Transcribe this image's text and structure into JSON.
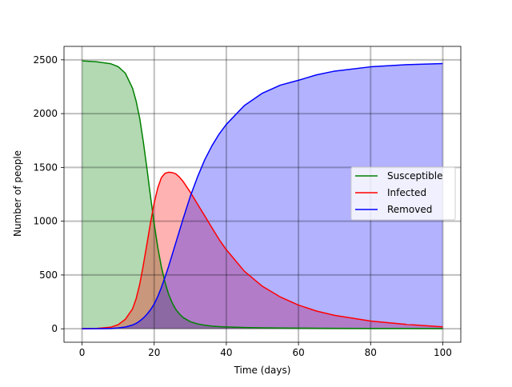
{
  "chart_data": {
    "type": "area",
    "title": "",
    "xlabel": "Time (days)",
    "ylabel": "Number of people",
    "xlim": [
      -5,
      105
    ],
    "ylim": [
      -125,
      2625
    ],
    "xticks": [
      0,
      20,
      40,
      60,
      80,
      100
    ],
    "yticks": [
      0,
      500,
      1000,
      1500,
      2000,
      2500
    ],
    "xtick_labels": [
      "0",
      "20",
      "40",
      "60",
      "80",
      "100"
    ],
    "ytick_labels": [
      "0",
      "500",
      "1000",
      "1500",
      "2000",
      "2500"
    ],
    "grid": true,
    "legend": {
      "position": "center-right"
    },
    "colors": {
      "grid": "#000000"
    },
    "x": [
      0,
      4,
      8,
      10,
      12,
      14,
      15,
      16,
      17,
      18,
      19,
      20,
      21,
      22,
      23,
      24,
      25,
      26,
      27,
      28,
      30,
      32,
      34,
      36,
      38,
      40,
      45,
      50,
      55,
      60,
      65,
      70,
      80,
      90,
      100
    ],
    "series": [
      {
        "name": "Susceptible",
        "color": "#008000",
        "fill_color": "#008000",
        "values": [
          2490,
          2482,
          2463,
          2437,
          2376,
          2236,
          2115,
          1955,
          1735,
          1488,
          1226,
          975,
          756,
          574,
          432,
          322,
          240,
          180,
          138,
          105,
          66,
          45,
          33,
          25,
          20,
          17,
          12,
          9,
          7,
          6,
          5,
          4,
          3,
          3,
          2
        ]
      },
      {
        "name": "Infected",
        "color": "#ff0000",
        "fill_color": "#ff0000",
        "values": [
          1,
          3,
          15,
          38,
          88,
          185,
          280,
          415,
          595,
          790,
          990,
          1170,
          1310,
          1405,
          1445,
          1455,
          1452,
          1440,
          1410,
          1370,
          1270,
          1160,
          1050,
          940,
          830,
          735,
          535,
          395,
          295,
          220,
          165,
          125,
          72,
          40,
          18
        ]
      },
      {
        "name": "Removed",
        "color": "#0000ff",
        "fill_color": "#0000ff",
        "values": [
          0,
          1,
          3,
          8,
          16,
          35,
          50,
          72,
          100,
          135,
          178,
          230,
          300,
          385,
          480,
          580,
          690,
          800,
          910,
          1020,
          1230,
          1410,
          1570,
          1700,
          1810,
          1900,
          2075,
          2190,
          2265,
          2310,
          2360,
          2395,
          2435,
          2455,
          2465
        ]
      }
    ]
  }
}
